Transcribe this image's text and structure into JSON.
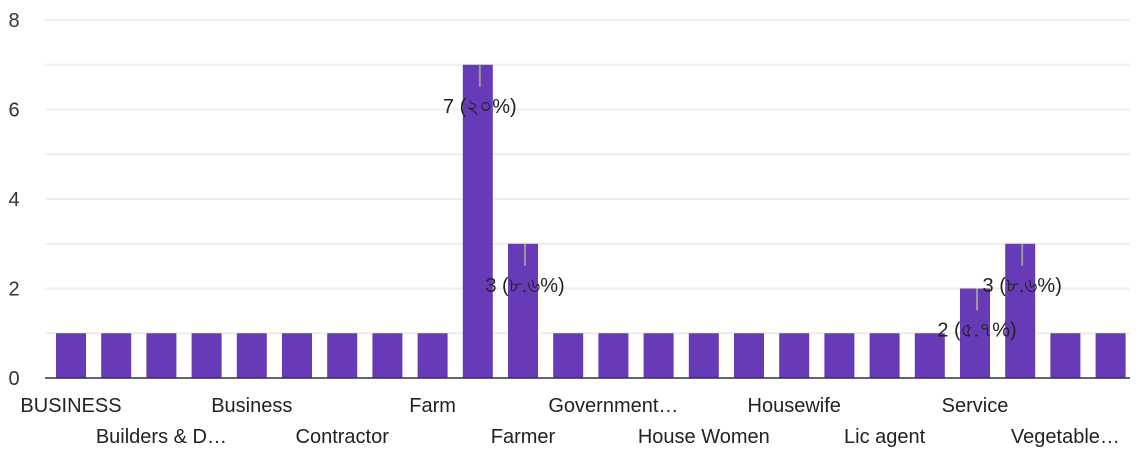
{
  "colors": {
    "bar": "#673AB7",
    "grid": "#EEEEEE",
    "leader": "#999999"
  },
  "chart_data": {
    "type": "bar",
    "title": "",
    "xlabel": "",
    "ylabel": "",
    "ylim": [
      0,
      8
    ],
    "yticks": [
      0,
      2,
      4,
      6,
      8
    ],
    "grid": true,
    "tick_labels": [
      "0",
      "2",
      "4",
      "6",
      "8"
    ],
    "categories": [
      "BUSINESS",
      "",
      "Builders & D…",
      "",
      "Business",
      "",
      "Contractor",
      "",
      "Farm",
      "",
      "Farmer",
      "",
      "Government…",
      "",
      "House Women",
      "",
      "Housewife",
      "",
      "Lic agent",
      "",
      "Service",
      "",
      "Vegetable…",
      ""
    ],
    "values": [
      1,
      1,
      1,
      1,
      1,
      1,
      1,
      1,
      1,
      7,
      3,
      1,
      1,
      1,
      1,
      1,
      1,
      1,
      1,
      1,
      2,
      3,
      1,
      1
    ],
    "data_labels": [
      "",
      "",
      "",
      "",
      "",
      "",
      "",
      "",
      "",
      "7 (২০%)",
      "3 (৮.৬%)",
      "",
      "",
      "",
      "",
      "",
      "",
      "",
      "",
      "",
      "2 (৫.৭%)",
      "3 (৮.৬%)",
      "",
      ""
    ]
  }
}
